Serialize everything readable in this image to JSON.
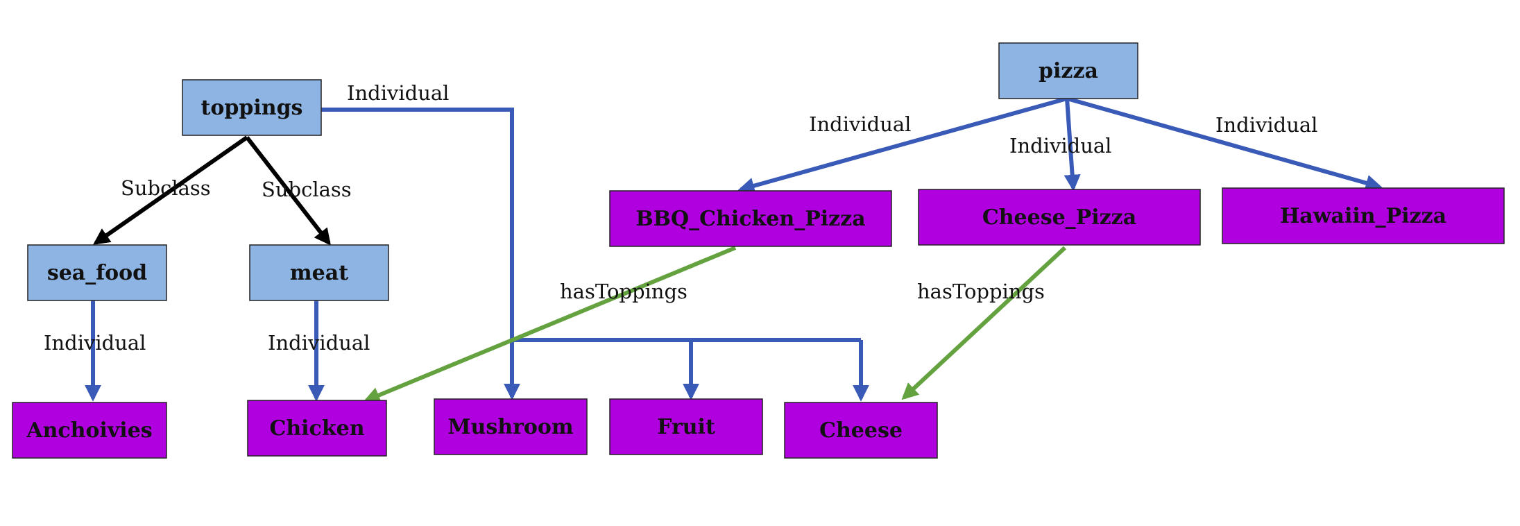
{
  "colors": {
    "class_fill": "#8db4e2",
    "individual_fill": "#b000e0",
    "node_border": "#222222",
    "individual_edge": "#3a5ab8",
    "subclass_edge": "#000000",
    "has_toppings_edge": "#64a23f"
  },
  "nodes": {
    "toppings": "toppings",
    "pizza": "pizza",
    "sea_food": "sea_food",
    "meat": "meat",
    "bbq_chicken_pizza": "BBQ_Chicken_Pizza",
    "cheese_pizza": "Cheese_Pizza",
    "hawaiin_pizza": "Hawaiin_Pizza",
    "anchoivies": "Anchoivies",
    "chicken": "Chicken",
    "mushroom": "Mushroom",
    "fruit": "Fruit",
    "cheese": "Cheese"
  },
  "edge_labels": {
    "toppings_individual": "Individual",
    "subclass_sea_food": "Subclass",
    "subclass_meat": "Subclass",
    "sea_food_individual": "Individual",
    "meat_individual": "Individual",
    "pizza_individual_bbq": "Individual",
    "pizza_individual_cheese": "Individual",
    "pizza_individual_hawaiin": "Individual",
    "bbq_has_toppings": "hasToppings",
    "cheese_has_toppings": "hasToppings"
  }
}
